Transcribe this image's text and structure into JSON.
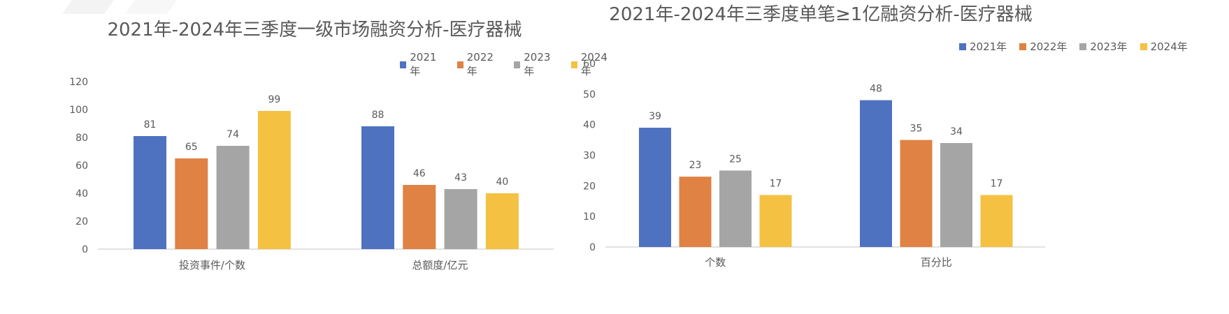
{
  "colors": {
    "2021年": "#4e72c0",
    "2022年": "#df8244",
    "2023年": "#a5a5a5",
    "2024年": "#f4c142"
  },
  "chart_data": [
    {
      "type": "bar",
      "title": "2021年-2024年三季度一级市场融资分析-医疗器械",
      "categories": [
        "投资事件/个数",
        "总额度/亿元"
      ],
      "series": [
        {
          "name": "2021年",
          "values": [
            81,
            88
          ]
        },
        {
          "name": "2022年",
          "values": [
            65,
            46
          ]
        },
        {
          "name": "2023年",
          "values": [
            74,
            43
          ]
        },
        {
          "name": "2024年",
          "values": [
            99,
            40
          ]
        }
      ],
      "ylim": [
        0,
        120
      ],
      "yticks": [
        0,
        20,
        40,
        60,
        80,
        100,
        120
      ],
      "grid": false,
      "legend": "top-right"
    },
    {
      "type": "bar",
      "title": "2021年-2024年三季度单笔≥1亿融资分析-医疗器械",
      "categories": [
        "个数",
        "百分比"
      ],
      "series": [
        {
          "name": "2021年",
          "values": [
            39,
            48
          ]
        },
        {
          "name": "2022年",
          "values": [
            23,
            35
          ]
        },
        {
          "name": "2023年",
          "values": [
            25,
            34
          ]
        },
        {
          "name": "2024年",
          "values": [
            17,
            17
          ]
        }
      ],
      "ylim": [
        0,
        60
      ],
      "yticks": [
        0,
        10,
        20,
        30,
        40,
        50,
        60
      ],
      "grid": false,
      "legend": "top-right"
    }
  ]
}
